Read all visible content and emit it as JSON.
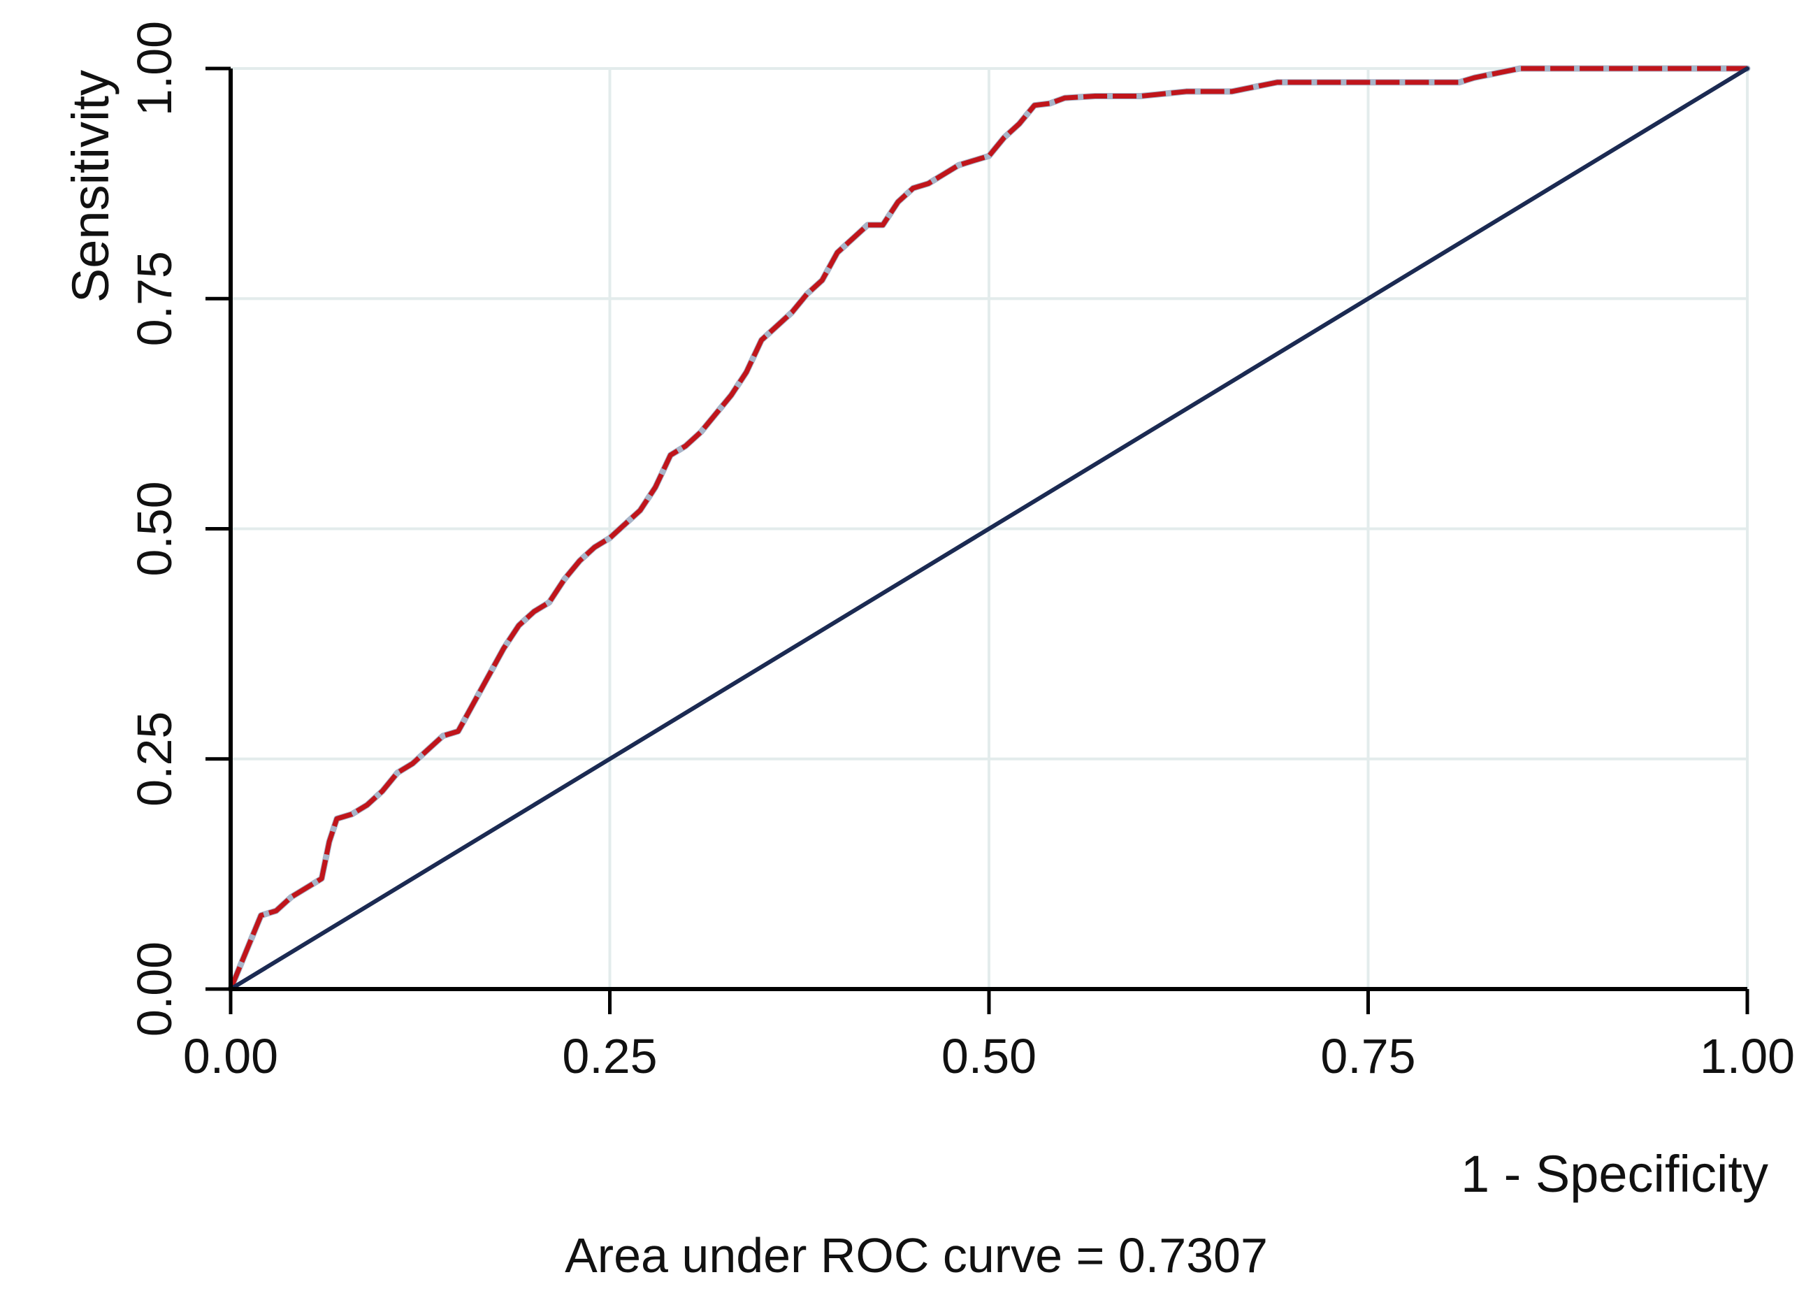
{
  "chart_data": {
    "type": "line",
    "title": "",
    "xlabel": "1 - Specificity",
    "ylabel": "Sensitivity",
    "xlim": [
      0,
      1
    ],
    "ylim": [
      0,
      1
    ],
    "grid": true,
    "x_ticks": [
      "0.00",
      "0.25",
      "0.50",
      "0.75",
      "1.00"
    ],
    "y_ticks": [
      "0.00",
      "0.25",
      "0.50",
      "0.75",
      "1.00"
    ],
    "x_tick_values": [
      0,
      0.25,
      0.5,
      0.75,
      1
    ],
    "y_tick_values": [
      0,
      0.25,
      0.5,
      0.75,
      1
    ],
    "note": "Area under ROC curve = 0.7307",
    "colors": {
      "roc": "#c0151b",
      "reference": "#1b2a52",
      "grid": "#e3ecec",
      "axis": "#000000"
    },
    "series": [
      {
        "name": "ROC curve",
        "style": "dashed",
        "x": [
          0,
          0.005,
          0.01,
          0.015,
          0.02,
          0.03,
          0.04,
          0.05,
          0.06,
          0.065,
          0.07,
          0.08,
          0.09,
          0.1,
          0.11,
          0.12,
          0.13,
          0.14,
          0.15,
          0.16,
          0.17,
          0.18,
          0.19,
          0.2,
          0.21,
          0.22,
          0.23,
          0.24,
          0.25,
          0.26,
          0.27,
          0.28,
          0.29,
          0.3,
          0.31,
          0.32,
          0.33,
          0.34,
          0.35,
          0.36,
          0.37,
          0.38,
          0.39,
          0.4,
          0.41,
          0.42,
          0.43,
          0.44,
          0.45,
          0.46,
          0.47,
          0.48,
          0.49,
          0.5,
          0.51,
          0.52,
          0.53,
          0.54,
          0.55,
          0.57,
          0.6,
          0.63,
          0.66,
          0.69,
          0.72,
          0.75,
          0.78,
          0.81,
          0.82,
          0.85,
          0.9,
          0.95,
          1.0
        ],
        "y": [
          0,
          0.02,
          0.04,
          0.06,
          0.08,
          0.085,
          0.1,
          0.11,
          0.12,
          0.16,
          0.185,
          0.19,
          0.2,
          0.215,
          0.235,
          0.245,
          0.26,
          0.275,
          0.28,
          0.31,
          0.34,
          0.37,
          0.395,
          0.41,
          0.42,
          0.445,
          0.465,
          0.48,
          0.49,
          0.505,
          0.52,
          0.545,
          0.58,
          0.59,
          0.605,
          0.625,
          0.645,
          0.67,
          0.705,
          0.72,
          0.735,
          0.755,
          0.77,
          0.8,
          0.815,
          0.83,
          0.83,
          0.855,
          0.87,
          0.875,
          0.885,
          0.895,
          0.9,
          0.905,
          0.925,
          0.94,
          0.96,
          0.962,
          0.968,
          0.97,
          0.97,
          0.975,
          0.975,
          0.985,
          0.985,
          0.985,
          0.985,
          0.985,
          0.99,
          1.0,
          1.0,
          1.0,
          1.0
        ]
      },
      {
        "name": "Reference",
        "style": "solid",
        "x": [
          0,
          1
        ],
        "y": [
          0,
          1
        ]
      }
    ]
  }
}
